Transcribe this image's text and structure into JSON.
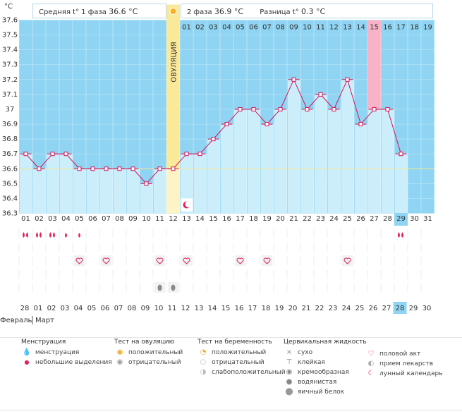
{
  "header": {
    "phase1_label": "Средняя t° 1 фаза",
    "phase1_value": "36.6 °C",
    "phase2_label": "2 фаза",
    "phase2_value": "36.9 °C",
    "diff_label": "Разница t°",
    "diff_value": "0.3 °C",
    "ovulation_label": "ОВУЛЯЦИЯ"
  },
  "chart_data": {
    "type": "line",
    "ylabel": "°C",
    "ylim": [
      36.3,
      37.6
    ],
    "yticks": [
      "37.6",
      "37.5",
      "37.4",
      "37.3",
      "37.2",
      "37.1",
      "37",
      "36.9",
      "36.8",
      "36.7",
      "36.6",
      "36.5",
      "36.4",
      "36.3"
    ],
    "cycle_days": [
      "01",
      "02",
      "03",
      "04",
      "05",
      "06",
      "07",
      "08",
      "09",
      "10",
      "11",
      "12",
      "13",
      "14",
      "15",
      "16",
      "17",
      "18",
      "19",
      "20",
      "21",
      "22",
      "23",
      "24",
      "25",
      "26",
      "27",
      "28",
      "29",
      "30",
      "31"
    ],
    "phase2_days": [
      "01",
      "02",
      "03",
      "04",
      "05",
      "06",
      "07",
      "08",
      "09",
      "10",
      "11",
      "12",
      "13",
      "14",
      "15",
      "16",
      "17",
      "18",
      "19"
    ],
    "temperatures": [
      36.7,
      36.6,
      36.7,
      36.7,
      36.6,
      36.6,
      36.6,
      36.6,
      36.6,
      36.5,
      36.6,
      36.6,
      36.7,
      36.7,
      36.8,
      36.9,
      37.0,
      37.0,
      36.9,
      37.0,
      37.2,
      37.0,
      37.1,
      37.0,
      37.2,
      36.9,
      37.0,
      37.0,
      36.7
    ],
    "coverline": 36.6,
    "ovulation_day": 12,
    "highlight_phase2_day": "15",
    "current_day": "29",
    "dates": [
      {
        "d": "28",
        "red": false
      },
      {
        "d": "01",
        "red": true
      },
      {
        "d": "02",
        "red": true
      },
      {
        "d": "03",
        "red": false
      },
      {
        "d": "04",
        "red": false
      },
      {
        "d": "05",
        "red": false
      },
      {
        "d": "06",
        "red": false
      },
      {
        "d": "07",
        "red": false
      },
      {
        "d": "08",
        "red": true
      },
      {
        "d": "09",
        "red": true
      },
      {
        "d": "10",
        "red": false
      },
      {
        "d": "11",
        "red": false
      },
      {
        "d": "12",
        "red": false
      },
      {
        "d": "13",
        "red": false
      },
      {
        "d": "14",
        "red": false
      },
      {
        "d": "15",
        "red": true
      },
      {
        "d": "16",
        "red": true
      },
      {
        "d": "17",
        "red": false
      },
      {
        "d": "18",
        "red": false
      },
      {
        "d": "19",
        "red": false
      },
      {
        "d": "20",
        "red": false
      },
      {
        "d": "21",
        "red": false
      },
      {
        "d": "22",
        "red": true
      },
      {
        "d": "23",
        "red": true
      },
      {
        "d": "24",
        "red": false
      },
      {
        "d": "25",
        "red": false
      },
      {
        "d": "26",
        "red": false
      },
      {
        "d": "27",
        "red": false
      },
      {
        "d": "28",
        "red": false
      },
      {
        "d": "29",
        "red": true
      },
      {
        "d": "30",
        "red": true
      }
    ],
    "month_feb": "Февраль",
    "month_mar": "Март",
    "menstruation_days": [
      1,
      2,
      3,
      29
    ],
    "light_bleeding_days": [
      4,
      5
    ],
    "sex_days": [
      5,
      7,
      11,
      13,
      17,
      19,
      25
    ],
    "pill_days": [
      11,
      12
    ],
    "moon_day": 13
  },
  "legend": {
    "menstruation_title": "Менструация",
    "menstruation": "менструация",
    "light": "небольшие выделения",
    "ovulation_test_title": "Тест на овуляцию",
    "ov_positive": "положительный",
    "ov_negative": "отрицательный",
    "pregnancy_test_title": "Тест на беременность",
    "pr_positive": "положительный",
    "pr_negative": "отрицательный",
    "pr_weak": "слабоположительный",
    "cervical_title": "Цервикальная жидкость",
    "cf_dry": "сухо",
    "cf_sticky": "клейкая",
    "cf_creamy": "кремообразная",
    "cf_watery": "водянистая",
    "cf_eggwhite": "яичный белок",
    "sex": "половой акт",
    "pills": "прием лекарств",
    "lunar": "лунный календарь"
  },
  "colors": {
    "sky": "#8fd4f2",
    "bar": "#cceefb",
    "line": "#d4145a",
    "ovulation": "#fbe99a",
    "highlight": "#f9b3c8",
    "current": "#8fd4f2"
  }
}
